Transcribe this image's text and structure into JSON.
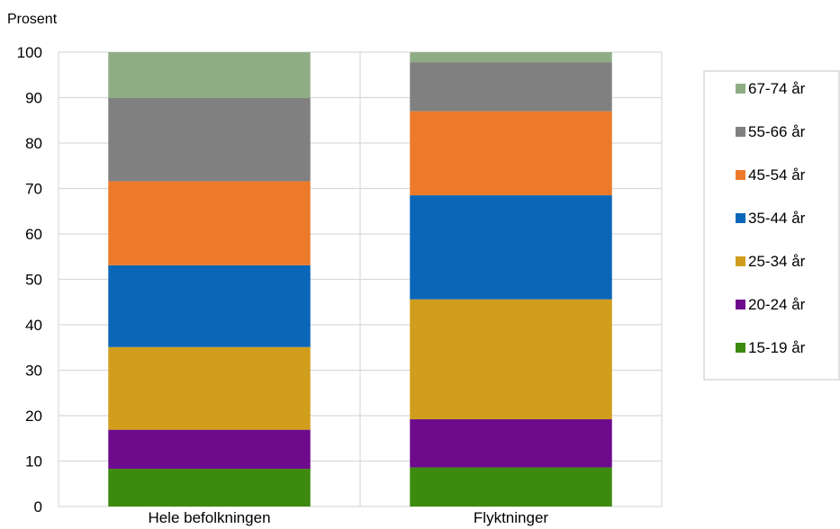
{
  "chart_data": {
    "type": "bar",
    "stacked": true,
    "ylabel": "Prosent",
    "ylim": [
      0,
      100
    ],
    "yticks": [
      0,
      10,
      20,
      30,
      40,
      50,
      60,
      70,
      80,
      90,
      100
    ],
    "categories": [
      "Hele befolkningen",
      "Flyktninger"
    ],
    "series": [
      {
        "name": "15-19 år",
        "color": "#3d8b0e",
        "values": [
          8.3,
          8.6
        ]
      },
      {
        "name": "20-24 år",
        "color": "#6e0a8c",
        "values": [
          8.6,
          10.6
        ]
      },
      {
        "name": "25-34 år",
        "color": "#d09e1c",
        "values": [
          18.2,
          26.4
        ]
      },
      {
        "name": "35-44 år",
        "color": "#0a66b7",
        "values": [
          18.0,
          22.9
        ]
      },
      {
        "name": "45-54 år",
        "color": "#ed7a2a",
        "values": [
          18.5,
          18.5
        ]
      },
      {
        "name": "55-66 år",
        "color": "#808080",
        "values": [
          18.3,
          10.8
        ]
      },
      {
        "name": "67-74 år",
        "color": "#8fad85",
        "values": [
          10.1,
          2.2
        ]
      }
    ],
    "grid": true,
    "legend_position": "right"
  }
}
